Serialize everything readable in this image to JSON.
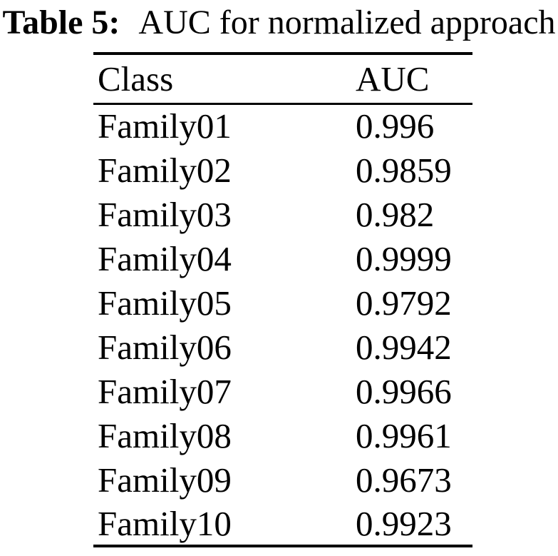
{
  "caption": {
    "label": "Table 5:",
    "text": "AUC for normalized approach"
  },
  "table": {
    "headers": [
      "Class",
      "AUC"
    ],
    "rows": [
      [
        "Family01",
        "0.996"
      ],
      [
        "Family02",
        "0.9859"
      ],
      [
        "Family03",
        "0.982"
      ],
      [
        "Family04",
        "0.9999"
      ],
      [
        "Family05",
        "0.9792"
      ],
      [
        "Family06",
        "0.9942"
      ],
      [
        "Family07",
        "0.9966"
      ],
      [
        "Family08",
        "0.9961"
      ],
      [
        "Family09",
        "0.9673"
      ],
      [
        "Family10",
        "0.9923"
      ]
    ]
  },
  "colors": {
    "text": "#000000",
    "background": "#ffffff",
    "rule": "#000000"
  }
}
